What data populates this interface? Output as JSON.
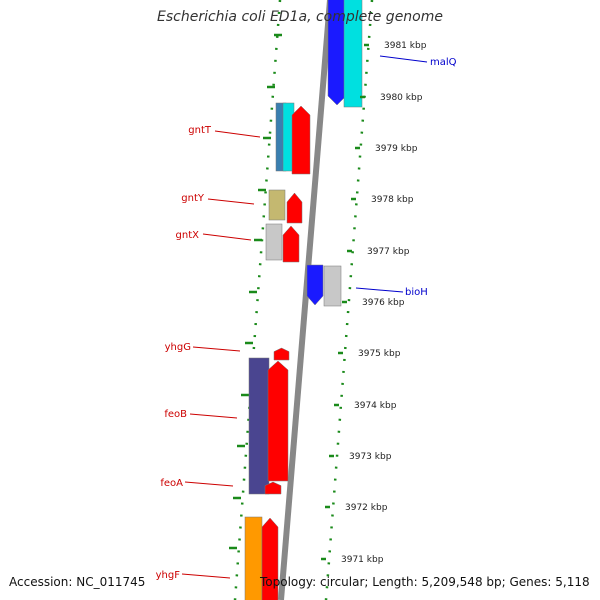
{
  "header": {
    "title": "Escherichia coli ED1a, complete genome"
  },
  "footer": {
    "accession": "Accession: NC_011745",
    "summary": "Topology: circular; Length: 5,209,548 bp; Genes: 5,118"
  },
  "colors": {
    "backbone": "#888888",
    "ticks": "#1a8a1a",
    "left_label": "#cc0000",
    "right_label": "#0000cc",
    "red": "#ff0000",
    "blue": "#1a1aff",
    "cyan": "#00e0e0",
    "steelblue": "#3a7fb0",
    "navy": "#4a4590",
    "khaki": "#c4b870",
    "grey": "#c8c8c8",
    "orange": "#ff9900"
  },
  "diagram": {
    "kbp_ticks": [
      "3981 kbp",
      "3980 kbp",
      "3979 kbp",
      "3978 kbp",
      "3977 kbp",
      "3976 kbp",
      "3975 kbp",
      "3974 kbp",
      "3973 kbp",
      "3972 kbp",
      "3971 kbp"
    ],
    "left_genes": [
      "gntT",
      "gntY",
      "gntX",
      "yhgG",
      "feoB",
      "feoA",
      "yhgF"
    ],
    "right_genes": [
      "malQ",
      "bioH"
    ]
  }
}
